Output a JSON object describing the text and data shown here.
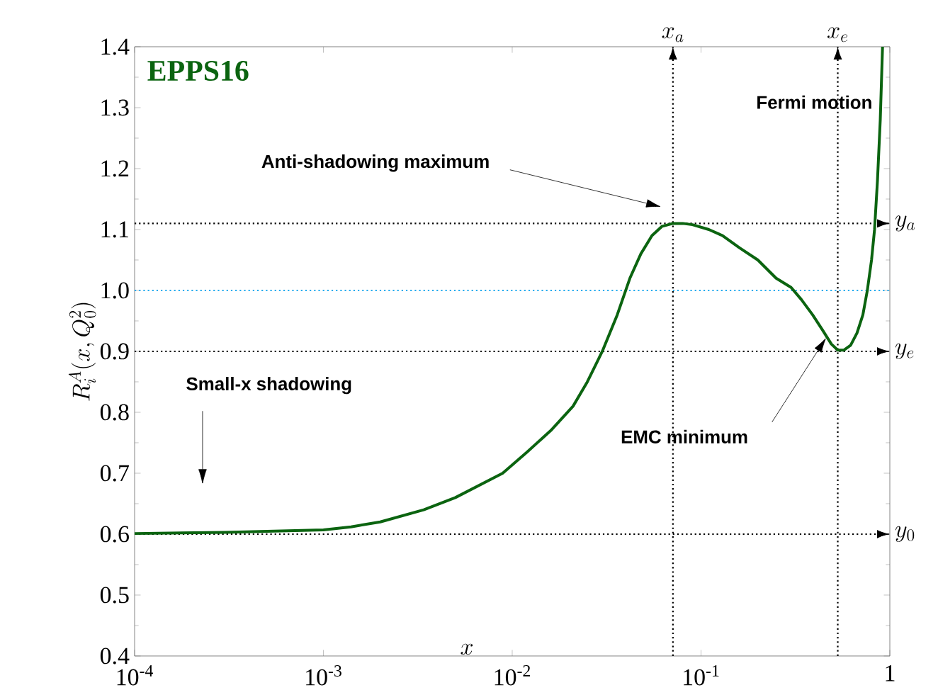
{
  "chart_data": {
    "type": "line",
    "title": "EPPS16",
    "xlabel": "x",
    "ylabel": "R_i^A(x,Q_0^2)",
    "log": "x",
    "grid": false,
    "marker": "none",
    "line_style": "solid",
    "xlim": [
      0.0001,
      1
    ],
    "ylim": [
      0.4,
      1.4
    ],
    "xticks": [
      {
        "value": 0.0001,
        "label": "10$^{-4}$"
      },
      {
        "value": 0.001,
        "label": "10$^{-3}$"
      },
      {
        "value": 0.01,
        "label": "10$^{-2}$"
      },
      {
        "value": 0.1,
        "label": "10$^{-1}$"
      },
      1
    ],
    "yticks": [
      {
        "value": 0.4,
        "label": "0.4"
      },
      {
        "value": 0.5,
        "label": "0.5"
      },
      {
        "value": 0.6,
        "label": "0.6"
      },
      {
        "value": 0.7,
        "label": "0.7"
      },
      {
        "value": 0.8,
        "label": "0.8"
      },
      {
        "value": 0.9,
        "label": "0.9"
      },
      {
        "value": 1.0,
        "label": "1.0"
      },
      {
        "value": 1.1,
        "label": "1.1"
      },
      {
        "value": 1.2,
        "label": "1.2"
      },
      {
        "value": 1.3,
        "label": "1.3"
      },
      {
        "value": 1.4,
        "label": "1.4"
      }
    ],
    "series": [
      {
        "color": "#0b6410",
        "x": [
          0.0001,
          0.0003,
          0.001,
          0.0014,
          0.002,
          0.0034,
          0.005,
          0.0089,
          0.012,
          0.016,
          0.021,
          0.025,
          0.03,
          0.036,
          0.042,
          0.048,
          0.055,
          0.062,
          0.071,
          0.08,
          0.09,
          0.11,
          0.13,
          0.16,
          0.2,
          0.25,
          0.3,
          0.34,
          0.39,
          0.44,
          0.49,
          0.53,
          0.57,
          0.62,
          0.67,
          0.72,
          0.76,
          0.8,
          0.83,
          0.86,
          0.89,
          0.915
        ],
        "values": [
          0.601,
          0.603,
          0.607,
          0.612,
          0.62,
          0.64,
          0.66,
          0.7,
          0.735,
          0.77,
          0.81,
          0.85,
          0.9,
          0.96,
          1.02,
          1.06,
          1.09,
          1.105,
          1.11,
          1.11,
          1.108,
          1.1,
          1.09,
          1.07,
          1.05,
          1.02,
          1.005,
          0.985,
          0.96,
          0.935,
          0.912,
          0.902,
          0.902,
          0.91,
          0.93,
          0.96,
          1.0,
          1.05,
          1.1,
          1.18,
          1.28,
          1.4
        ]
      }
    ],
    "ref_lines": [
      {
        "axis": "y",
        "value": 1.0,
        "color": "#22aaee",
        "line_style": "dotted"
      },
      {
        "axis": "y",
        "value": 0.6,
        "label": "y_0",
        "color": "#000000",
        "line_style": "dotted"
      },
      {
        "axis": "y",
        "value": 1.11,
        "label": "y_a",
        "color": "#000000",
        "line_style": "dotted"
      },
      {
        "axis": "y",
        "value": 0.9,
        "label": "y_e",
        "color": "#000000",
        "line_style": "dotted"
      },
      {
        "axis": "x",
        "value": 0.071,
        "label": "x_a",
        "color": "#000000",
        "line_style": "dotted"
      },
      {
        "axis": "x",
        "value": 0.53,
        "label": "x_e",
        "color": "#000000",
        "line_style": "dotted"
      }
    ],
    "annotations": [
      "Anti-shadowing maximum",
      "Small-x shadowing",
      "EMC minimum",
      "Fermi motion"
    ]
  }
}
